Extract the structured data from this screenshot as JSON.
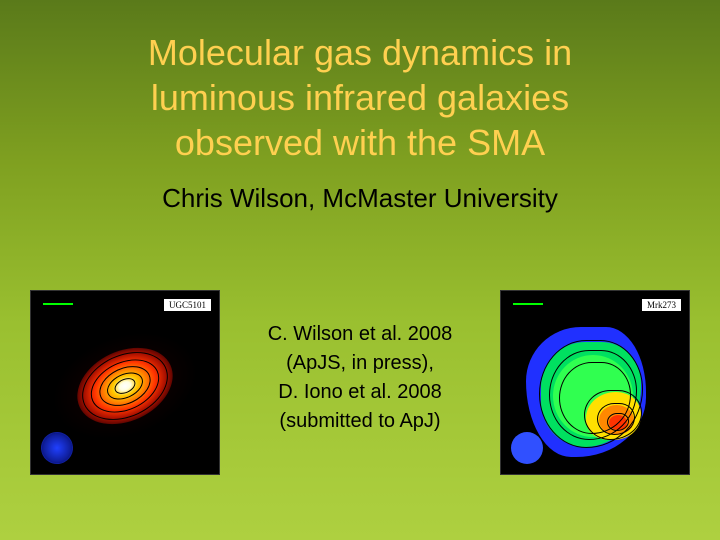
{
  "slide": {
    "title_line1": "Molecular gas dynamics in",
    "title_line2": "luminous infrared galaxies",
    "title_line3": "observed with the SMA",
    "subtitle": "Chris Wilson, McMaster University",
    "refs": {
      "line1": "C. Wilson et al. 2008",
      "line2": "(ApJS, in press),",
      "line3": "D. Iono et al. 2008",
      "line4": "(submitted to ApJ)"
    },
    "title_color": "#ffd050",
    "title_fontsize": 36,
    "subtitle_fontsize": 26,
    "refs_fontsize": 20,
    "background_gradient": [
      "#5a7a1a",
      "#7fa020",
      "#9ac030",
      "#aed040"
    ]
  },
  "left_image": {
    "label": "UGC5101",
    "type": "astronomical-contour-map",
    "colormap": "thermal",
    "gradient_colors": [
      "#ffffff",
      "#ffffe0",
      "#ffcc00",
      "#ff8800",
      "#ff3300",
      "#aa1100",
      "#440000",
      "#000000"
    ],
    "contour_color": "#000000",
    "contour_levels": 5,
    "rotation_deg": -25,
    "background": "#000000",
    "scale_bar_color": "#00ff00",
    "beam_color": "#2040ff"
  },
  "right_image": {
    "label": "Mrk273",
    "type": "astronomical-contour-map",
    "colormap": "rainbow",
    "color_levels": [
      "#2030ff",
      "#00e060",
      "#30ff50",
      "#ffe000",
      "#ff8800",
      "#ff3300"
    ],
    "contour_color": "#000000",
    "contour_levels": 6,
    "background": "#000000",
    "scale_bar_color": "#00ff00",
    "beam_color": "#3050ff"
  }
}
